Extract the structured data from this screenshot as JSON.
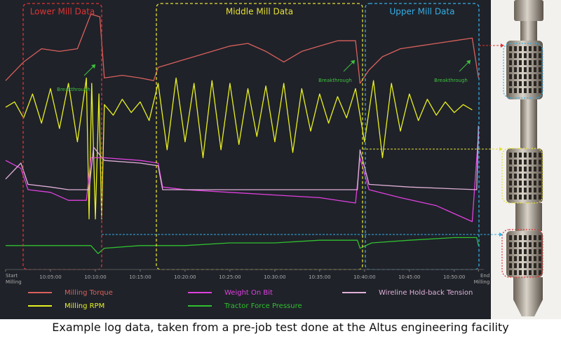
{
  "chart_data": {
    "type": "line",
    "regions": [
      {
        "label": "Lower Mill Data",
        "color": "#e03434"
      },
      {
        "label": "Middle Mill Data",
        "color": "#e6e034"
      },
      {
        "label": "Upper Mill Data",
        "color": "#34aee6"
      }
    ],
    "annotations": [
      "Breakthrough",
      "Breakthrough",
      "Breakthrough"
    ],
    "xlim": [
      0,
      53.3
    ],
    "ylim": [
      0,
      100
    ],
    "xticks": [
      {
        "value": 0,
        "label": "Start Milling"
      },
      {
        "value": 5,
        "label": "10:05:00"
      },
      {
        "value": 10,
        "label": "10:10:00"
      },
      {
        "value": 15,
        "label": "10:15:00"
      },
      {
        "value": 20,
        "label": "10:20:00"
      },
      {
        "value": 25,
        "label": "10:25:00"
      },
      {
        "value": 30,
        "label": "10:30:00"
      },
      {
        "value": 35,
        "label": "10:35:00"
      },
      {
        "value": 40,
        "label": "10:40:00"
      },
      {
        "value": 45,
        "label": "10:45:00"
      },
      {
        "value": 50,
        "label": "10:50:00"
      },
      {
        "value": 52.7,
        "label": "End Milling"
      }
    ],
    "series": [
      {
        "name": "Milling Torque",
        "color": "#d9605c",
        "x": [
          0,
          2,
          4,
          6,
          8,
          9.5,
          10.5,
          11,
          13,
          15,
          16.5,
          17,
          19,
          21,
          23,
          25,
          27,
          29,
          31,
          33,
          35,
          37,
          39,
          39.5,
          40.5,
          42,
          44,
          46,
          48,
          50,
          52,
          52.7
        ],
        "values": [
          71,
          78,
          83,
          82,
          83,
          96,
          95,
          72,
          73,
          72,
          71,
          76,
          78,
          80,
          82,
          84,
          85,
          82,
          78,
          82,
          84,
          86,
          86,
          70,
          75,
          80,
          83,
          84,
          85,
          86,
          87,
          72
        ]
      },
      {
        "name": "Milling RPM",
        "color": "#e8f020",
        "x": [
          0,
          1,
          2,
          3,
          4,
          5,
          6,
          7,
          8,
          9,
          9.3,
          9.6,
          10,
          10.4,
          10.7,
          11,
          12,
          13,
          14,
          15,
          16,
          17,
          18,
          19,
          20,
          21,
          22,
          23,
          24,
          25,
          26,
          27,
          28,
          29,
          30,
          31,
          32,
          33,
          34,
          35,
          36,
          37,
          38,
          39,
          40,
          41,
          42,
          43,
          44,
          45,
          46,
          47,
          48,
          49,
          50,
          51,
          52
        ],
        "values": [
          61,
          63,
          57,
          66,
          55,
          68,
          53,
          70,
          48,
          72,
          19,
          70,
          19,
          66,
          19,
          62,
          58,
          64,
          59,
          63,
          56,
          70,
          45,
          72,
          48,
          70,
          42,
          71,
          45,
          70,
          47,
          68,
          50,
          69,
          48,
          70,
          44,
          68,
          52,
          66,
          55,
          65,
          57,
          68,
          48,
          71,
          42,
          70,
          52,
          66,
          56,
          64,
          58,
          63,
          59,
          62,
          60
        ]
      },
      {
        "name": "Weight On Bit",
        "color": "#e040e0",
        "x": [
          0,
          1.7,
          2.5,
          5,
          7,
          9,
          9.5,
          11,
          15,
          17,
          17.5,
          20,
          25,
          30,
          35,
          39,
          39.5,
          40.5,
          44,
          48,
          52,
          52.7
        ],
        "values": [
          41,
          38,
          30,
          29,
          26,
          26,
          42,
          42,
          41,
          40,
          31,
          30,
          29,
          28,
          27,
          25,
          42,
          30,
          27,
          24,
          18,
          51
        ]
      },
      {
        "name": "Tractor Force Pressure",
        "color": "#30c030",
        "x": [
          0,
          2,
          5,
          9.5,
          10.3,
          11,
          15,
          20,
          25,
          30,
          35,
          39.2,
          39.5,
          40.8,
          45,
          50,
          52.5,
          52.7
        ],
        "values": [
          9,
          9,
          9,
          9,
          6,
          8,
          9,
          9,
          10,
          10,
          11,
          11,
          8,
          10,
          11,
          12,
          12,
          9
        ]
      },
      {
        "name": "Wireline Hold-back Tension",
        "color": "#e0b0d8",
        "x": [
          0,
          1.7,
          2.5,
          5,
          7,
          9.3,
          9.8,
          11,
          15,
          17,
          17.5,
          25,
          35,
          39.2,
          39.5,
          40.5,
          45,
          52.5,
          52.7
        ],
        "values": [
          34,
          40,
          32,
          31,
          30,
          30,
          46,
          41,
          40,
          39,
          30,
          30,
          30,
          30,
          45,
          32,
          31,
          30,
          54
        ]
      }
    ]
  },
  "caption": "Example log data, taken from a pre-job test done at the Altus engineering facility"
}
